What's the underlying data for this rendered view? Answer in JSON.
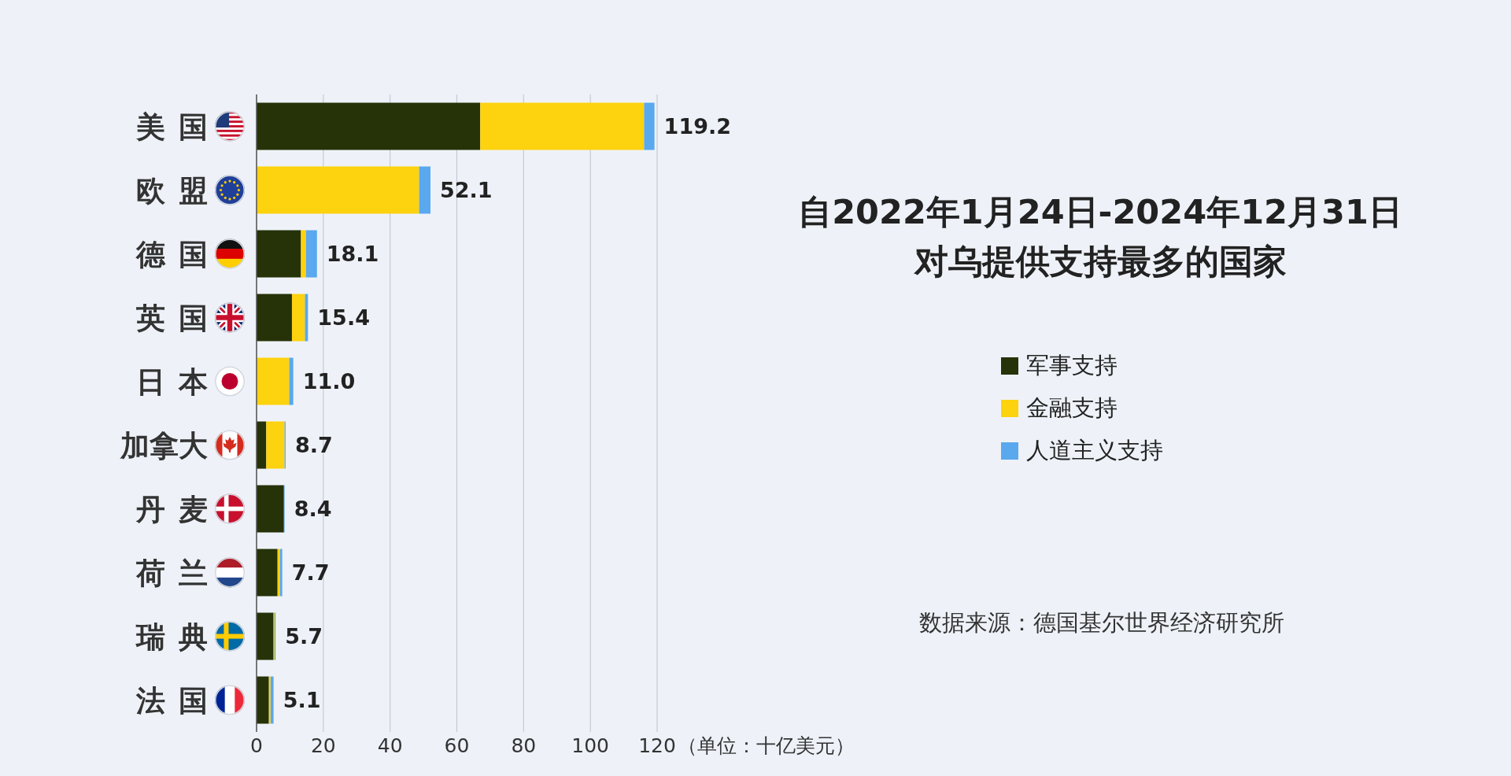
{
  "chart_data": {
    "type": "bar",
    "orientation": "horizontal",
    "stacked": true,
    "title": "自2022年1月24日-2024年12月31日对乌提供支持最多的国家",
    "xlabel": "（单位：十亿美元）",
    "categories": [
      "美国",
      "欧盟",
      "德国",
      "英国",
      "日本",
      "加拿大",
      "丹麦",
      "荷兰",
      "瑞典",
      "法国"
    ],
    "series": [
      {
        "name": "军事支持",
        "color": "#263208",
        "values": [
          67.0,
          0,
          13.3,
          10.6,
          0,
          2.9,
          8.2,
          6.3,
          5.1,
          3.7
        ]
      },
      {
        "name": "金融支持",
        "color": "#fdd20e",
        "values": [
          49.1,
          48.7,
          1.5,
          3.9,
          9.8,
          5.5,
          0,
          0.7,
          0.3,
          0.5
        ]
      },
      {
        "name": "人道主义支持",
        "color": "#5aa8ee",
        "values": [
          3.1,
          3.4,
          3.3,
          0.9,
          1.2,
          0.3,
          0.2,
          0.7,
          0.3,
          0.9
        ]
      }
    ],
    "totals": [
      "119.2",
      "52.1",
      "18.1",
      "15.4",
      "11.0",
      "8.7",
      "8.4",
      "7.7",
      "5.7",
      "5.1"
    ],
    "xlim": [
      0,
      120
    ],
    "xticks": [
      0,
      20,
      40,
      60,
      80,
      100,
      120
    ],
    "grid": "x",
    "legend": "right",
    "annotations": [
      "数据来源：德国基尔世界经济研究所"
    ]
  }
}
